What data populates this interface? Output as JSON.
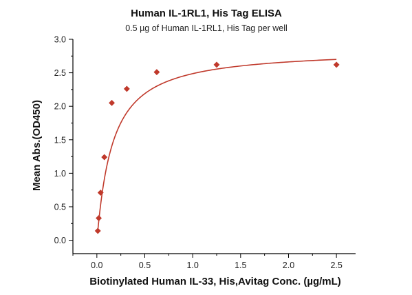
{
  "chart_data": {
    "type": "scatter",
    "title": "Human IL-1RL1, His Tag ELISA",
    "subtitle": "0.5 µg of Human IL-1RL1, His Tag per well",
    "xlabel": "Biotinylated Human IL-33, His,Avitag Conc. (µg/mL)",
    "ylabel": "Mean Abs.(OD450)",
    "xlim": [
      -0.25,
      2.7
    ],
    "ylim": [
      -0.2,
      3.0
    ],
    "x_ticks": [
      0.0,
      0.5,
      1.0,
      1.5,
      2.0,
      2.5
    ],
    "x_tick_labels": [
      "0.0",
      "0.5",
      "1.0",
      "1.5",
      "2.0",
      "2.5"
    ],
    "y_ticks": [
      0.0,
      0.5,
      1.0,
      1.5,
      2.0,
      2.5,
      3.0
    ],
    "y_tick_labels": [
      "0.0",
      "0.5",
      "1.0",
      "1.5",
      "2.0",
      "2.5",
      "3.0"
    ],
    "grid": false,
    "legend": "none",
    "series": [
      {
        "x": [
          0.0098,
          0.0195,
          0.039,
          0.078,
          0.156,
          0.3125,
          0.625,
          1.25,
          2.5
        ],
        "y": [
          0.14,
          0.33,
          0.71,
          1.24,
          2.05,
          2.26,
          2.51,
          2.62,
          2.62
        ],
        "marker": "diamond",
        "fit_curve": "four-parameter logistic",
        "color": "#c0392b"
      }
    ]
  }
}
